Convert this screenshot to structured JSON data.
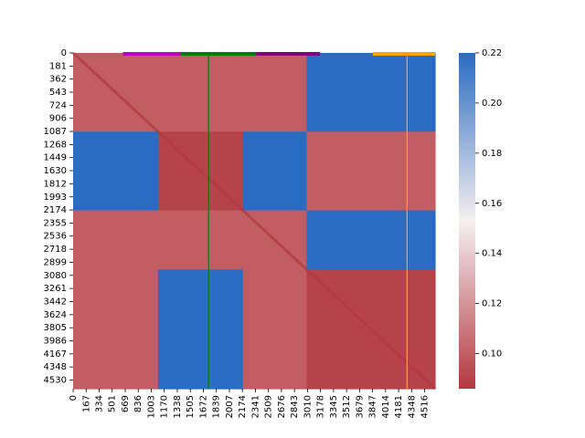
{
  "chart_data": {
    "type": "heatmap",
    "title": "",
    "xlabel": "",
    "ylabel": "",
    "n": 4650,
    "x_tick_labels": [
      "0",
      "167",
      "334",
      "501",
      "669",
      "836",
      "1003",
      "1170",
      "1338",
      "1505",
      "1672",
      "1839",
      "2007",
      "2174",
      "2341",
      "2509",
      "2676",
      "2843",
      "3010",
      "3178",
      "3345",
      "3512",
      "3679",
      "3847",
      "4014",
      "4181",
      "4348",
      "4516"
    ],
    "y_tick_labels": [
      "0",
      "181",
      "362",
      "543",
      "724",
      "906",
      "1087",
      "1268",
      "1449",
      "1630",
      "1812",
      "1993",
      "2174",
      "2355",
      "2536",
      "2718",
      "2899",
      "3080",
      "3261",
      "3442",
      "3624",
      "3805",
      "3986",
      "4167",
      "4348",
      "4530"
    ],
    "colorbar": {
      "min": 0.086,
      "max": 0.22,
      "ticks": [
        0.1,
        0.12,
        0.14,
        0.16,
        0.18,
        0.2,
        0.22
      ],
      "tick_labels": [
        "0.10",
        "0.12",
        "0.14",
        "0.16",
        "0.18",
        "0.20",
        "0.22"
      ],
      "colormap": "vlag_r",
      "color_low": "#b3383f",
      "color_mid": "#f5efef",
      "color_high": "#2a6cc3"
    },
    "segment_bars": [
      {
        "start": 640,
        "end": 1380,
        "color": "#c000c0"
      },
      {
        "start": 1380,
        "end": 2350,
        "color": "#008000"
      },
      {
        "start": 2350,
        "end": 3170,
        "color": "#800080"
      },
      {
        "start": 3850,
        "end": 4650,
        "color": "#ffa500"
      }
    ],
    "vertical_lines": [
      {
        "x": 1740,
        "color": "#008000"
      },
      {
        "x": 4290,
        "color": "#ffa500"
      }
    ],
    "block_boundaries": [
      0,
      1090,
      2180,
      3000,
      4650
    ],
    "block_means": [
      [
        0.1,
        0.1,
        0.1,
        0.22
      ],
      [
        0.22,
        0.09,
        0.22,
        0.1
      ],
      [
        0.1,
        0.1,
        0.1,
        0.22
      ],
      [
        0.1,
        0.22,
        0.1,
        0.09
      ]
    ]
  }
}
